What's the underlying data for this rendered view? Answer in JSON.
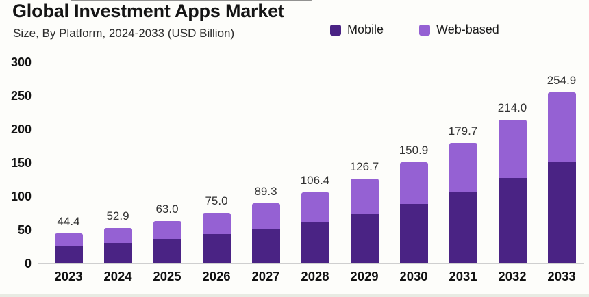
{
  "header": {
    "title": "Global Investment Apps Market",
    "subtitle": "Size, By Platform, 2024-2033 (USD Billion)"
  },
  "legend": [
    {
      "label": "Mobile",
      "color": "#4a2384"
    },
    {
      "label": "Web-based",
      "color": "#9561d3"
    }
  ],
  "chart_data": {
    "type": "bar",
    "variant": "stacked",
    "title": "Global Investment Apps Market",
    "subtitle": "Size, By Platform, 2024-2033 (USD Billion)",
    "xlabel": "",
    "ylabel": "",
    "ylim": [
      0,
      300
    ],
    "yticks": [
      0,
      50,
      100,
      150,
      200,
      250,
      300
    ],
    "grid": false,
    "legend_position": "top-right",
    "categories": [
      "2023",
      "2024",
      "2025",
      "2026",
      "2027",
      "2028",
      "2029",
      "2030",
      "2031",
      "2032",
      "2033"
    ],
    "series": [
      {
        "name": "Mobile",
        "color": "#4a2384",
        "estimated_from_pixels": true,
        "values": [
          26.0,
          31.0,
          37.0,
          43.5,
          52.0,
          62.0,
          74.0,
          88.5,
          106.0,
          127.0,
          152.0
        ]
      },
      {
        "name": "Web-based",
        "color": "#9561d3",
        "estimated_from_pixels": true,
        "values": [
          18.4,
          21.9,
          26.0,
          31.5,
          37.3,
          44.4,
          52.7,
          62.4,
          73.7,
          87.0,
          102.9
        ]
      }
    ],
    "totals": [
      44.4,
      52.9,
      63.0,
      75.0,
      89.3,
      106.4,
      126.7,
      150.9,
      179.7,
      214.0,
      254.9
    ],
    "total_labels": [
      "44.4",
      "52.9",
      "63.0",
      "75.0",
      "89.3",
      "106.4",
      "126.7",
      "150.9",
      "179.7",
      "214.0",
      "254.9"
    ]
  }
}
